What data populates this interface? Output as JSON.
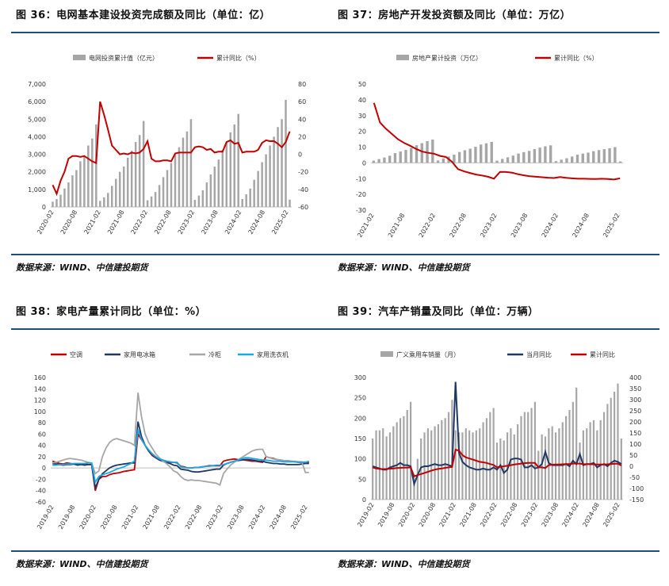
{
  "panels": [
    {
      "title": "图 36：电网基本建设投资完成额及同比（单位：亿）",
      "source": "数据来源：WIND、中信建投期货"
    },
    {
      "title": "图 37：房地产开发投资额及同比（单位：万亿）",
      "source": "数据来源：WIND、中信建投期货"
    },
    {
      "title": "图 38：家电产量累计同比（单位：%）",
      "source": "数据来源：WIND、中信建投期货"
    },
    {
      "title": "图 39：汽车产销量及同比（单位：万辆）",
      "source": "数据来源：WIND、中信建投期货"
    }
  ],
  "colors": {
    "bar": "#a6a6a6",
    "red": "#c00000",
    "navy": "#1f3864",
    "gray": "#a6a6a6",
    "blue": "#1aa7e5",
    "rule": "#1f4e79"
  },
  "chart_data": [
    {
      "type": "bar",
      "x_ticks": [
        "2020-02",
        "2020-08",
        "2021-02",
        "2021-08",
        "2022-02",
        "2022-08",
        "2023-02",
        "2023-08",
        "2024-02",
        "2024-08",
        "2025-02"
      ],
      "y_left": {
        "lim": [
          0,
          7000
        ],
        "ticks": [
          "0",
          "1,000",
          "2,000",
          "3,000",
          "4,000",
          "5,000",
          "6,000",
          "7,000"
        ]
      },
      "y_right": {
        "lim": [
          -60,
          80
        ],
        "ticks": [
          "-60",
          "-40",
          "-20",
          "0",
          "20",
          "40",
          "60",
          "80"
        ]
      },
      "series": [
        {
          "name": "电网投资累计值（亿元）",
          "axis": "left",
          "type": "bar",
          "values": [
            300,
            450,
            700,
            1050,
            1400,
            1800,
            2100,
            2600,
            2900,
            3500,
            3900,
            4700,
            350,
            550,
            800,
            1200,
            1600,
            2000,
            2300,
            2800,
            3200,
            3700,
            4100,
            4900,
            380,
            600,
            850,
            1250,
            1700,
            2100,
            2500,
            3000,
            3400,
            3950,
            4300,
            5000,
            400,
            650,
            950,
            1400,
            1850,
            2300,
            2700,
            3250,
            3700,
            4250,
            4700,
            5300,
            450,
            720,
            1050,
            1550,
            2050,
            2550,
            3000,
            3500,
            4000,
            4550,
            5000,
            6100,
            420
          ]
        },
        {
          "name": "累计同比（%）",
          "axis": "right",
          "type": "line",
          "values": [
            -35,
            -45,
            -30,
            -20,
            -5,
            -2,
            -2,
            -3,
            -2,
            -5,
            -8,
            -10,
            60,
            45,
            28,
            10,
            5,
            0,
            1,
            0,
            2,
            1,
            2,
            6,
            15,
            -5,
            -8,
            -8,
            -7,
            -7,
            -8,
            1,
            2,
            2,
            2,
            2,
            8,
            9,
            8,
            5,
            6,
            2,
            3,
            3,
            14,
            16,
            12,
            13,
            2,
            3,
            3,
            3,
            5,
            13,
            16,
            15,
            15,
            12,
            8,
            14,
            26
          ]
        }
      ]
    },
    {
      "type": "bar",
      "x_ticks": [
        "2021-02",
        "2021-08",
        "2022-02",
        "2022-08",
        "2023-02",
        "2023-08",
        "2024-02",
        "2024-08",
        "2025-02"
      ],
      "y_left": {
        "lim": [
          -30,
          50
        ],
        "ticks": [
          "-30",
          "-20",
          "-10",
          "0",
          "10",
          "20",
          "30",
          "40",
          "50"
        ]
      },
      "series": [
        {
          "name": "房地产累计投资（万亿）",
          "axis": "left",
          "type": "bar",
          "values": [
            1.4,
            2.4,
            3.4,
            4.5,
            6.2,
            7.2,
            8.2,
            9.5,
            11.2,
            12.5,
            13.8,
            14.8,
            1.5,
            2.8,
            4.0,
            5.2,
            6.9,
            8.0,
            9.0,
            10.2,
            11.6,
            12.4,
            13.3,
            1.4,
            2.5,
            3.5,
            4.6,
            5.9,
            6.8,
            7.6,
            8.7,
            9.7,
            10.5,
            11.1,
            1.1,
            2.0,
            2.9,
            4.0,
            5.2,
            5.9,
            6.5,
            7.4,
            8.1,
            8.7,
            9.3,
            10.0,
            0.9
          ]
        },
        {
          "name": "累计同比（%）",
          "axis": "left",
          "type": "line",
          "values": [
            38,
            25.6,
            21.6,
            18.3,
            15.0,
            12.7,
            10.9,
            8.9,
            7.2,
            6.4,
            5.8,
            4.4,
            3.7,
            0.7,
            -4.0,
            -5.4,
            -6.4,
            -7.4,
            -8.0,
            -8.8,
            -10,
            -5.7,
            -5.8,
            -6.2,
            -7.2,
            -7.9,
            -8.5,
            -8.8,
            -9.1,
            -9.4,
            -9.6,
            -9.0,
            -9.5,
            -9.8,
            -10.1,
            -10.1,
            -10.2,
            -10.3,
            -10.1,
            -10.3,
            -10.6,
            -9.8
          ]
        }
      ]
    },
    {
      "type": "line",
      "x_ticks": [
        "2019-02",
        "2019-08",
        "2020-02",
        "2020-08",
        "2021-02",
        "2021-08",
        "2022-02",
        "2022-08",
        "2023-02",
        "2023-08",
        "2024-02",
        "2024-08",
        "2025-02"
      ],
      "y_left": {
        "lim": [
          -60,
          160
        ],
        "ticks": [
          "-60",
          "-40",
          "-20",
          "0",
          "20",
          "40",
          "60",
          "80",
          "100",
          "120",
          "140",
          "160"
        ]
      },
      "series": [
        {
          "name": "空调",
          "values": [
            12,
            10,
            8,
            7,
            9,
            8,
            7,
            6,
            7,
            6,
            6,
            6,
            -40,
            -20,
            -15,
            -15,
            -12,
            -10,
            -9,
            -8,
            -6,
            -5,
            -4,
            -3,
            60,
            50,
            40,
            30,
            22,
            18,
            16,
            14,
            12,
            10,
            10,
            9,
            3,
            2,
            0,
            0,
            1,
            1,
            2,
            3,
            4,
            4,
            4,
            4,
            12,
            14,
            15,
            16,
            15,
            15,
            14,
            13,
            12,
            12,
            11,
            10,
            20,
            18,
            17,
            15,
            14,
            13,
            13,
            12,
            11,
            10,
            10,
            10,
            10
          ]
        },
        {
          "name": "家用电冰箱",
          "values": [
            8,
            7,
            6,
            5,
            6,
            6,
            7,
            5,
            6,
            5,
            6,
            6,
            -35,
            -20,
            -10,
            -5,
            0,
            3,
            5,
            6,
            7,
            8,
            9,
            9,
            82,
            55,
            40,
            30,
            24,
            18,
            14,
            12,
            10,
            8,
            5,
            4,
            -2,
            -3,
            -4,
            -6,
            -7,
            -7,
            -6,
            -5,
            -4,
            -3,
            -2,
            -2,
            5,
            8,
            10,
            12,
            13,
            14,
            15,
            15,
            14,
            13,
            12,
            12,
            10,
            9,
            8,
            8,
            7,
            7,
            6,
            6,
            6,
            6,
            7,
            8,
            8
          ]
        },
        {
          "name": "冷柜",
          "values": [
            9,
            10,
            12,
            14,
            16,
            17,
            16,
            15,
            14,
            12,
            10,
            8,
            -10,
            -5,
            20,
            35,
            45,
            50,
            52,
            50,
            48,
            46,
            44,
            40,
            133,
            90,
            60,
            45,
            35,
            25,
            18,
            12,
            8,
            2,
            -5,
            -8,
            -15,
            -20,
            -22,
            -21,
            -22,
            -22,
            -23,
            -24,
            -25,
            -26,
            -27,
            -30,
            -10,
            -2,
            5,
            10,
            14,
            18,
            22,
            26,
            30,
            32,
            33,
            33,
            20,
            18,
            16,
            15,
            14,
            13,
            13,
            12,
            12,
            11,
            11,
            -8,
            -8
          ]
        },
        {
          "name": "家用洗衣机",
          "values": [
            5,
            5,
            6,
            6,
            7,
            7,
            8,
            8,
            8,
            8,
            9,
            9,
            -25,
            -15,
            -12,
            -10,
            -8,
            -5,
            -2,
            0,
            2,
            5,
            8,
            12,
            68,
            50,
            40,
            32,
            25,
            20,
            16,
            14,
            12,
            11,
            10,
            10,
            2,
            1,
            0,
            0,
            1,
            1,
            2,
            3,
            3,
            4,
            5,
            5,
            6,
            8,
            10,
            12,
            14,
            16,
            18,
            18,
            17,
            16,
            15,
            14,
            14,
            13,
            12,
            12,
            12,
            11,
            11,
            11,
            11,
            10,
            10,
            10,
            12
          ]
        }
      ]
    },
    {
      "type": "bar",
      "x_ticks": [
        "2019-02",
        "2019-08",
        "2020-02",
        "2020-08",
        "2021-02",
        "2021-08",
        "2022-02",
        "2022-08",
        "2023-02",
        "2023-08",
        "2024-02",
        "2024-08",
        "2025-02"
      ],
      "y_left": {
        "lim": [
          0,
          300
        ],
        "ticks": [
          "0",
          "50",
          "100",
          "150",
          "200",
          "250",
          "300"
        ]
      },
      "y_right": {
        "lim": [
          -150,
          400
        ],
        "ticks": [
          "-150",
          "-100",
          "-50",
          "0",
          "50",
          "100",
          "150",
          "200",
          "250",
          "300",
          "350",
          "400"
        ]
      },
      "series": [
        {
          "name": "广义乘用车销量（月）",
          "axis": "left",
          "type": "bar",
          "values": [
            150,
            170,
            170,
            175,
            155,
            165,
            180,
            190,
            200,
            205,
            220,
            240,
            60,
            100,
            150,
            165,
            175,
            170,
            180,
            185,
            195,
            200,
            215,
            245,
            170,
            165,
            165,
            175,
            170,
            165,
            170,
            175,
            190,
            200,
            215,
            225,
            140,
            150,
            145,
            165,
            175,
            160,
            185,
            205,
            215,
            215,
            225,
            240,
            120,
            160,
            155,
            175,
            180,
            165,
            175,
            190,
            205,
            220,
            240,
            275,
            140,
            170,
            175,
            190,
            195,
            170,
            195,
            215,
            235,
            250,
            265,
            285,
            150
          ]
        },
        {
          "name": "当月同比",
          "axis": "right",
          "type": "line",
          "values": [
            0,
            -5,
            -10,
            -15,
            -15,
            -5,
            0,
            5,
            15,
            5,
            5,
            0,
            -80,
            -40,
            -5,
            0,
            0,
            5,
            10,
            5,
            5,
            10,
            5,
            0,
            380,
            60,
            20,
            5,
            -5,
            -10,
            -15,
            -15,
            -10,
            -15,
            -15,
            -5,
            -15,
            5,
            -30,
            -15,
            30,
            35,
            35,
            30,
            -5,
            -5,
            5,
            -10,
            -5,
            10,
            65,
            15,
            5,
            5,
            5,
            5,
            10,
            0,
            25,
            10,
            55,
            5,
            10,
            10,
            15,
            -5,
            5,
            10,
            0,
            15,
            25,
            20,
            10
          ]
        },
        {
          "name": "累计同比",
          "axis": "right",
          "type": "line",
          "values": [
            -5,
            -10,
            -12,
            -13,
            -12,
            -11,
            -10,
            -8,
            -7,
            -6,
            -6,
            -5,
            -45,
            -40,
            -35,
            -30,
            -25,
            -20,
            -15,
            -12,
            -10,
            -7,
            -5,
            -3,
            75,
            70,
            50,
            40,
            35,
            30,
            25,
            20,
            18,
            15,
            10,
            6,
            -5,
            -2,
            0,
            2,
            5,
            8,
            10,
            12,
            14,
            15,
            15,
            15,
            -5,
            -5,
            -8,
            5,
            7,
            8,
            8,
            9,
            10,
            10,
            12,
            12,
            12,
            9,
            10,
            9,
            9,
            8,
            8,
            8,
            9,
            10,
            11,
            12,
            3
          ]
        }
      ]
    }
  ]
}
